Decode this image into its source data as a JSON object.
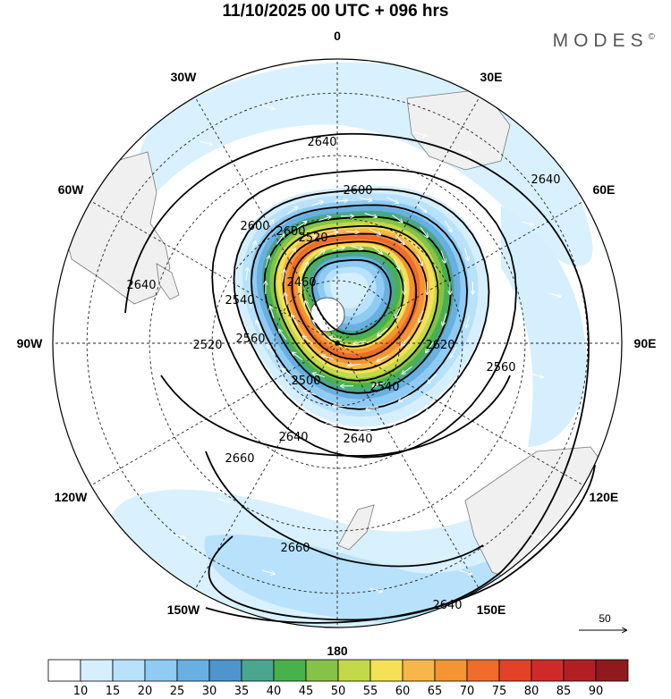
{
  "title": "11/10/2025  00 UTC  + 096 hrs",
  "brand": "MODES",
  "brand_mark": "©",
  "longitude_labels": [
    {
      "text": "0",
      "lon": 0
    },
    {
      "text": "30E",
      "lon": 30
    },
    {
      "text": "60E",
      "lon": 60
    },
    {
      "text": "90E",
      "lon": 90
    },
    {
      "text": "120E",
      "lon": 120
    },
    {
      "text": "150E",
      "lon": 150
    },
    {
      "text": "180",
      "lon": 180
    },
    {
      "text": "150W",
      "lon": -150
    },
    {
      "text": "120W",
      "lon": -120
    },
    {
      "text": "90W",
      "lon": -90
    },
    {
      "text": "60W",
      "lon": -60
    },
    {
      "text": "30W",
      "lon": -30
    }
  ],
  "contour_labels": [
    "2460",
    "2500",
    "2520",
    "2540",
    "2560",
    "2600",
    "2620",
    "2640",
    "2660"
  ],
  "wind_reference": {
    "value": "50"
  },
  "colorbar": {
    "levels": [
      "10",
      "15",
      "20",
      "25",
      "30",
      "35",
      "40",
      "45",
      "50",
      "55",
      "60",
      "65",
      "70",
      "75",
      "80",
      "85",
      "90"
    ],
    "colors": [
      "#ffffff",
      "#d5efff",
      "#b8e2fb",
      "#8fcbf2",
      "#69b0e2",
      "#4d95cc",
      "#4ba690",
      "#47b24c",
      "#85c246",
      "#c4d94a",
      "#f5e155",
      "#f6b64a",
      "#f49432",
      "#ef6c2b",
      "#e34227",
      "#cf2a2a",
      "#b21f23",
      "#8f1a1e"
    ]
  },
  "colors": {
    "land": "#f0f0f0",
    "coast": "#7a7a7a",
    "grid": "#222222",
    "contour": "#000000",
    "arrow": "#ffffff"
  }
}
